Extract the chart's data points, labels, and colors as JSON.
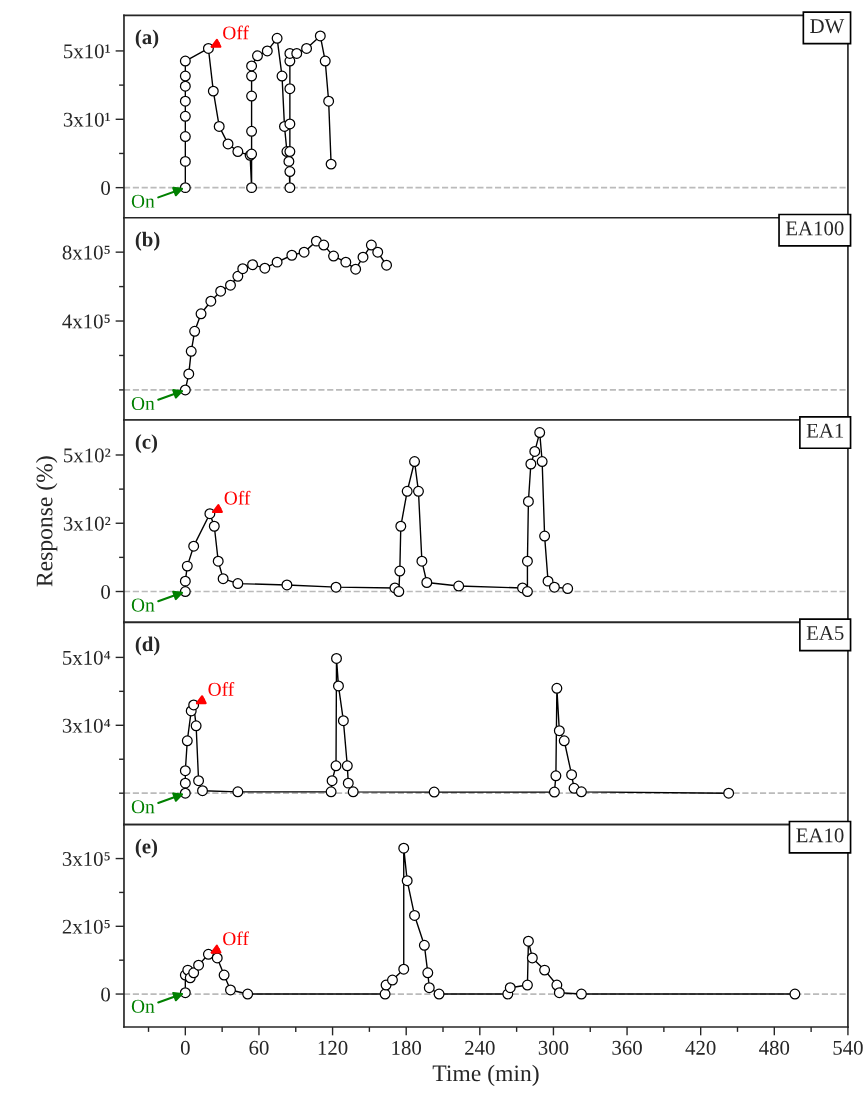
{
  "chart_data": [
    {
      "type": "line",
      "title": "(a)",
      "subtitle": "DW",
      "marker": "circle",
      "tick_labels": "y",
      "xlim": [
        -50,
        540
      ],
      "xticks": [
        {
          "value": -30,
          "label": null
        },
        0,
        {
          "value": 30,
          "label": null
        },
        60,
        {
          "value": 90,
          "label": null
        },
        120,
        {
          "value": 150,
          "label": null
        },
        180,
        {
          "value": 210,
          "label": null
        },
        240,
        {
          "value": 270,
          "label": null
        },
        300,
        {
          "value": 330,
          "label": null
        },
        360,
        {
          "value": 390,
          "label": null
        },
        420,
        {
          "value": 450,
          "label": null
        },
        480,
        {
          "value": 510,
          "label": null
        },
        540
      ],
      "ylim": [
        -11,
        63
      ],
      "yticks": [
        0,
        {
          "value": 12.5,
          "label": null
        },
        {
          "value": 25,
          "label": "3x10¹"
        },
        {
          "value": 37.5,
          "label": null
        },
        {
          "value": 50,
          "label": "5x10¹"
        }
      ],
      "ref_lines": [
        {
          "axis": "y",
          "value": 0,
          "color": "#bbbbbb",
          "line_style": "dashed"
        }
      ],
      "annotations": [
        {
          "text": "On",
          "x": 0,
          "y": 0
        },
        {
          "text": "Off",
          "x": 18.8,
          "y": 50.9
        }
      ],
      "series": [
        {
          "color": "#000000",
          "x": [
            0,
            0,
            0,
            0,
            0,
            0,
            0,
            0,
            18.8,
            22.8,
            27.6,
            34.8,
            42.8,
            52.8,
            54,
            54,
            54,
            54,
            54,
            54,
            58.8,
            66.8,
            74.8,
            78.8,
            80.8,
            82.8,
            84.4,
            85.2,
            85.2,
            85.2,
            85.2,
            85.2,
            85.2,
            85.2,
            90.8,
            98.8,
            110,
            114,
            116.8,
            118.8
          ],
          "values": [
            0,
            9.6,
            18.7,
            26.1,
            31.6,
            37.1,
            40.8,
            46.3,
            50.9,
            35.3,
            22.4,
            16,
            13.2,
            11.8,
            0,
            12.3,
            20.6,
            33.5,
            40.8,
            44.5,
            48.2,
            50,
            54.6,
            40.8,
            22.4,
            13.2,
            9.6,
            0,
            5.9,
            13.2,
            23.3,
            36.2,
            46.3,
            49.1,
            49.1,
            50.9,
            55.5,
            46.3,
            31.6,
            8.6
          ]
        }
      ]
    },
    {
      "type": "line",
      "title": "(b)",
      "subtitle": "EA100",
      "marker": "circle",
      "tick_labels": "y",
      "xlim": [
        -50,
        540
      ],
      "xticks": [
        {
          "value": -30,
          "label": null
        },
        0,
        {
          "value": 30,
          "label": null
        },
        60,
        {
          "value": 90,
          "label": null
        },
        120,
        {
          "value": 150,
          "label": null
        },
        180,
        {
          "value": 210,
          "label": null
        },
        240,
        {
          "value": 270,
          "label": null
        },
        300,
        {
          "value": 330,
          "label": null
        },
        360,
        {
          "value": 390,
          "label": null
        },
        420,
        {
          "value": 450,
          "label": null
        },
        480,
        {
          "value": 510,
          "label": null
        },
        540
      ],
      "ylim": [
        -175000,
        1000000
      ],
      "yticks": [
        {
          "value": 0,
          "label": null
        },
        {
          "value": 200000,
          "label": null
        },
        {
          "value": 400000,
          "label": "4x10⁵"
        },
        {
          "value": 600000,
          "label": null
        },
        {
          "value": 800000,
          "label": "8x10⁵"
        }
      ],
      "ref_lines": [
        {
          "axis": "y",
          "value": 0,
          "color": "#bbbbbb",
          "line_style": "dashed"
        }
      ],
      "annotations": [
        {
          "text": "On",
          "x": 0,
          "y": 0
        }
      ],
      "series": [
        {
          "color": "#000000",
          "x": [
            0,
            2.8,
            4.8,
            7.6,
            12.8,
            20.8,
            28.8,
            36.8,
            42.8,
            46.8,
            54.8,
            64.8,
            74.8,
            86.8,
            96.8,
            106.8,
            112.8,
            120.8,
            130.8,
            138.8,
            144.8,
            151.6,
            156.8,
            164
          ],
          "values": [
            0,
            93000,
            224000,
            340000,
            442000,
            515000,
            573000,
            608000,
            660000,
            704000,
            727000,
            707000,
            742000,
            782000,
            800000,
            864000,
            841000,
            777000,
            742000,
            701000,
            771000,
            841000,
            800000,
            724000
          ]
        }
      ]
    },
    {
      "type": "line",
      "title": "(c)",
      "subtitle": "EA1",
      "ylabel": "Response (%)",
      "marker": "circle",
      "tick_labels": "y",
      "xlim": [
        -50,
        540
      ],
      "xticks": [
        {
          "value": -30,
          "label": null
        },
        0,
        {
          "value": 30,
          "label": null
        },
        60,
        {
          "value": 90,
          "label": null
        },
        120,
        {
          "value": 150,
          "label": null
        },
        180,
        {
          "value": 210,
          "label": null
        },
        240,
        {
          "value": 270,
          "label": null
        },
        300,
        {
          "value": 330,
          "label": null
        },
        360,
        {
          "value": 390,
          "label": null
        },
        420,
        {
          "value": 450,
          "label": null
        },
        480,
        {
          "value": 510,
          "label": null
        },
        540
      ],
      "ylim": [
        -113,
        628
      ],
      "yticks": [
        0,
        {
          "value": 125,
          "label": null
        },
        {
          "value": 250,
          "label": "3x10²"
        },
        {
          "value": 375,
          "label": null
        },
        {
          "value": 500,
          "label": "5x10²"
        }
      ],
      "ref_lines": [
        {
          "axis": "y",
          "value": 0,
          "color": "#bbbbbb",
          "line_style": "dashed"
        }
      ],
      "annotations": [
        {
          "text": "On",
          "x": 0,
          "y": 0
        },
        {
          "text": "Off",
          "x": 20,
          "y": 285
        }
      ],
      "series": [
        {
          "color": "#000000",
          "x": [
            0,
            0,
            1.6,
            6.8,
            20,
            23.6,
            26.8,
            30.8,
            42.8,
            82.8,
            122.8,
            170.8,
            174,
            174.8,
            175.6,
            180.8,
            186.8,
            190,
            192.8,
            196.8,
            222.8,
            274.8,
            278.8,
            278.8,
            279.6,
            281.6,
            284.8,
            288.8,
            290.8,
            292.8,
            295.6,
            300.8,
            311.6
          ],
          "values": [
            0,
            38,
            93,
            166,
            285,
            239,
            111,
            47,
            29,
            24,
            16,
            13,
            0,
            75,
            239,
            367,
            476,
            367,
            111,
            33,
            20,
            13,
            0,
            111,
            330,
            467,
            513,
            582,
            476,
            203,
            38,
            16,
            11
          ]
        }
      ]
    },
    {
      "type": "line",
      "title": "(d)",
      "subtitle": "EA5",
      "marker": "circle",
      "tick_labels": "y",
      "xlim": [
        -50,
        540
      ],
      "xticks": [
        {
          "value": -30,
          "label": null
        },
        0,
        {
          "value": 30,
          "label": null
        },
        60,
        {
          "value": 90,
          "label": null
        },
        120,
        {
          "value": 150,
          "label": null
        },
        180,
        {
          "value": 210,
          "label": null
        },
        240,
        {
          "value": 270,
          "label": null
        },
        300,
        {
          "value": 330,
          "label": null
        },
        360,
        {
          "value": 390,
          "label": null
        },
        420,
        {
          "value": 450,
          "label": null
        },
        480,
        {
          "value": 510,
          "label": null
        },
        540
      ],
      "ylim": [
        -11600,
        62900
      ],
      "yticks": [
        {
          "value": 0,
          "label": null
        },
        {
          "value": 12500,
          "label": null
        },
        {
          "value": 25000,
          "label": "3x10⁴"
        },
        {
          "value": 37500,
          "label": null
        },
        {
          "value": 50000,
          "label": "5x10⁴"
        }
      ],
      "ref_lines": [
        {
          "axis": "y",
          "value": 0,
          "color": "#bbbbbb",
          "line_style": "dashed"
        }
      ],
      "annotations": [
        {
          "text": "On",
          "x": 0,
          "y": 0
        },
        {
          "text": "Off",
          "x": 6.8,
          "y": 32500
        }
      ],
      "series": [
        {
          "color": "#000000",
          "x": [
            0,
            0,
            0,
            1.6,
            4.8,
            6.8,
            8.8,
            10.8,
            14,
            42.8,
            118.8,
            119.6,
            122.8,
            123.2,
            124.8,
            128.8,
            132,
            132.8,
            136.8,
            202.8,
            300.8,
            302,
            302.8,
            304.8,
            308.8,
            314.8,
            316.8,
            322.8,
            442.8
          ],
          "values": [
            0,
            3700,
            8300,
            19300,
            30300,
            32500,
            24800,
            4600,
            900,
            500,
            500,
            4600,
            10100,
            49600,
            39500,
            26700,
            10100,
            3700,
            500,
            400,
            400,
            6400,
            38600,
            23000,
            19300,
            6800,
            1800,
            500,
            0
          ]
        }
      ]
    },
    {
      "type": "line",
      "title": "(e)",
      "subtitle": "EA10",
      "xlabel": "Time (min)",
      "marker": "circle",
      "xlim": [
        -50,
        540
      ],
      "xticks": [
        {
          "value": -30,
          "label": null
        },
        0,
        {
          "value": 30,
          "label": null
        },
        60,
        {
          "value": 90,
          "label": null
        },
        120,
        {
          "value": 150,
          "label": null
        },
        180,
        {
          "value": 210,
          "label": null
        },
        240,
        {
          "value": 270,
          "label": null
        },
        300,
        {
          "value": 330,
          "label": null
        },
        360,
        {
          "value": 390,
          "label": null
        },
        420,
        {
          "value": 450,
          "label": null
        },
        480,
        {
          "value": 510,
          "label": null
        },
        540
      ],
      "ylim": [
        -73000,
        375000
      ],
      "yticks": [
        0,
        {
          "value": 75000,
          "label": null
        },
        {
          "value": 150000,
          "label": "2x10⁵"
        },
        {
          "value": 225000,
          "label": null
        },
        {
          "value": 300000,
          "label": "3x10⁵"
        }
      ],
      "ref_lines": [
        {
          "axis": "y",
          "value": 0,
          "color": "#bbbbbb",
          "line_style": "dashed"
        }
      ],
      "annotations": [
        {
          "text": "On",
          "x": 0,
          "y": 3000
        },
        {
          "text": "Off",
          "x": 18.8,
          "y": 88000
        }
      ],
      "series": [
        {
          "color": "#000000",
          "x": [
            0,
            0,
            2,
            4,
            6.8,
            10.8,
            18.8,
            26,
            31.6,
            36.8,
            50.8,
            162.8,
            163.6,
            168.8,
            178,
            178,
            180.8,
            186.8,
            194.8,
            197.6,
            198.8,
            206.8,
            262.8,
            264.8,
            278.8,
            279.6,
            282.8,
            292.8,
            302.8,
            304.8,
            322.8,
            496.8
          ],
          "values": [
            3000,
            42000,
            53000,
            36000,
            47000,
            64000,
            88000,
            80000,
            42000,
            9000,
            0,
            0,
            20000,
            31000,
            55000,
            323000,
            251000,
            174000,
            108000,
            47000,
            14000,
            0,
            0,
            14000,
            20000,
            117000,
            80000,
            53000,
            20000,
            3000,
            0,
            0
          ]
        }
      ]
    }
  ]
}
